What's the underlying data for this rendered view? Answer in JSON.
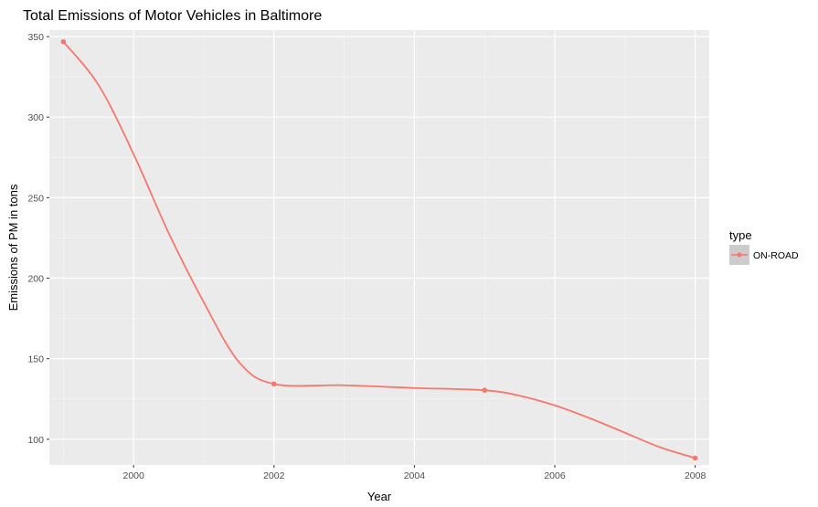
{
  "chart_data": {
    "type": "line",
    "title": "Total Emissions of Motor Vehicles in Baltimore",
    "xlabel": "Year",
    "ylabel": "Emissions of PM in tons",
    "xlim": [
      1998.8,
      2008.2
    ],
    "ylim": [
      84,
      354
    ],
    "x_ticks": [
      2000,
      2002,
      2004,
      2006,
      2008
    ],
    "y_ticks": [
      100,
      150,
      200,
      250,
      300,
      350
    ],
    "grid": true,
    "legend": {
      "title": "type",
      "placement": "right"
    },
    "series": [
      {
        "name": "ON-ROAD",
        "color": "#f8766d",
        "x": [
          1999,
          2002,
          2005,
          2008
        ],
        "values": [
          346.8,
          134.3,
          130.4,
          88.3
        ]
      }
    ],
    "smooth_curve": {
      "x": [
        1999,
        1999.5,
        2000,
        2000.5,
        2001,
        2001.5,
        2002,
        2003,
        2004,
        2005,
        2005.5,
        2006,
        2006.5,
        2007,
        2007.5,
        2008
      ],
      "y": [
        346.8,
        320,
        277,
        228,
        185,
        148,
        134.3,
        133.5,
        131.8,
        130.4,
        127,
        121,
        113,
        104,
        95,
        88.3
      ]
    }
  }
}
